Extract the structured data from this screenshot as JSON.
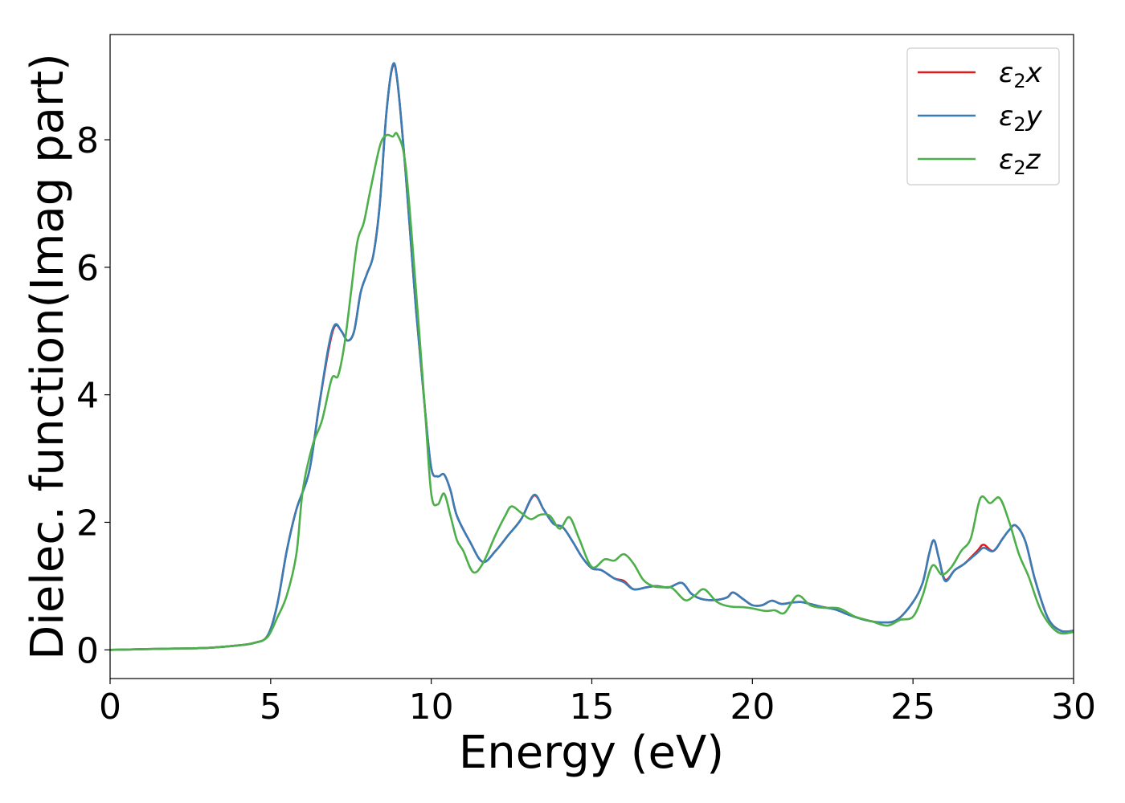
{
  "chart_data": {
    "type": "line",
    "title": "",
    "xlabel": "Energy (eV)",
    "ylabel": "Dielec. function(Imag part)",
    "xlim": [
      0,
      30
    ],
    "ylim": [
      -0.45,
      9.65
    ],
    "xticks": [
      0,
      5,
      10,
      15,
      20,
      25,
      30
    ],
    "xtick_labels": [
      "0",
      "5",
      "10",
      "15",
      "20",
      "25",
      "30"
    ],
    "yticks": [
      0,
      2,
      4,
      6,
      8
    ],
    "ytick_labels": [
      "0",
      "2",
      "4",
      "6",
      "8"
    ],
    "grid": false,
    "legend_position": "top-right",
    "series": [
      {
        "name": "ε2x",
        "legend_main": "ε",
        "legend_sub": "2",
        "legend_tail": "x",
        "color": "#e41a1c",
        "points": [
          [
            0,
            0
          ],
          [
            1,
            0.01
          ],
          [
            2,
            0.02
          ],
          [
            3,
            0.03
          ],
          [
            4,
            0.07
          ],
          [
            4.5,
            0.11
          ],
          [
            4.9,
            0.22
          ],
          [
            5.2,
            0.7
          ],
          [
            5.5,
            1.55
          ],
          [
            5.8,
            2.2
          ],
          [
            6.2,
            2.8
          ],
          [
            6.5,
            3.8
          ],
          [
            6.8,
            4.7
          ],
          [
            7.0,
            5.08
          ],
          [
            7.2,
            5.0
          ],
          [
            7.4,
            4.85
          ],
          [
            7.6,
            5.0
          ],
          [
            7.8,
            5.6
          ],
          [
            8.0,
            5.9
          ],
          [
            8.2,
            6.2
          ],
          [
            8.4,
            7.0
          ],
          [
            8.6,
            8.4
          ],
          [
            8.8,
            9.15
          ],
          [
            8.95,
            8.9
          ],
          [
            9.2,
            7.5
          ],
          [
            9.5,
            5.5
          ],
          [
            9.8,
            3.8
          ],
          [
            10.0,
            2.85
          ],
          [
            10.2,
            2.72
          ],
          [
            10.4,
            2.75
          ],
          [
            10.6,
            2.5
          ],
          [
            10.8,
            2.1
          ],
          [
            11.2,
            1.7
          ],
          [
            11.6,
            1.38
          ],
          [
            12.0,
            1.55
          ],
          [
            12.4,
            1.8
          ],
          [
            12.8,
            2.05
          ],
          [
            13.2,
            2.42
          ],
          [
            13.5,
            2.2
          ],
          [
            13.8,
            1.98
          ],
          [
            14.1,
            1.92
          ],
          [
            14.4,
            1.7
          ],
          [
            14.7,
            1.45
          ],
          [
            15.0,
            1.28
          ],
          [
            15.3,
            1.25
          ],
          [
            15.7,
            1.12
          ],
          [
            16.0,
            1.08
          ],
          [
            16.3,
            0.95
          ],
          [
            16.7,
            0.98
          ],
          [
            17.0,
            1.0
          ],
          [
            17.4,
            0.98
          ],
          [
            17.8,
            1.05
          ],
          [
            18.1,
            0.88
          ],
          [
            18.4,
            0.8
          ],
          [
            18.8,
            0.78
          ],
          [
            19.2,
            0.82
          ],
          [
            19.4,
            0.9
          ],
          [
            19.7,
            0.8
          ],
          [
            20.0,
            0.7
          ],
          [
            20.3,
            0.7
          ],
          [
            20.6,
            0.77
          ],
          [
            20.9,
            0.72
          ],
          [
            21.2,
            0.74
          ],
          [
            21.5,
            0.75
          ],
          [
            21.8,
            0.72
          ],
          [
            22.2,
            0.67
          ],
          [
            22.6,
            0.63
          ],
          [
            23.0,
            0.55
          ],
          [
            23.5,
            0.47
          ],
          [
            24.0,
            0.43
          ],
          [
            24.5,
            0.47
          ],
          [
            25.0,
            0.75
          ],
          [
            25.3,
            1.05
          ],
          [
            25.5,
            1.5
          ],
          [
            25.65,
            1.72
          ],
          [
            25.8,
            1.45
          ],
          [
            26.0,
            1.1
          ],
          [
            26.3,
            1.25
          ],
          [
            26.6,
            1.35
          ],
          [
            27.0,
            1.55
          ],
          [
            27.2,
            1.65
          ],
          [
            27.5,
            1.55
          ],
          [
            27.8,
            1.75
          ],
          [
            28.0,
            1.88
          ],
          [
            28.2,
            1.95
          ],
          [
            28.5,
            1.7
          ],
          [
            28.8,
            1.1
          ],
          [
            29.2,
            0.5
          ],
          [
            29.6,
            0.3
          ],
          [
            30,
            0.3
          ]
        ]
      },
      {
        "name": "ε2y",
        "legend_main": "ε",
        "legend_sub": "2",
        "legend_tail": "y",
        "color": "#377eb8",
        "points": [
          [
            0,
            0
          ],
          [
            1,
            0.01
          ],
          [
            2,
            0.02
          ],
          [
            3,
            0.03
          ],
          [
            4,
            0.07
          ],
          [
            4.5,
            0.11
          ],
          [
            4.9,
            0.22
          ],
          [
            5.2,
            0.7
          ],
          [
            5.5,
            1.55
          ],
          [
            5.8,
            2.2
          ],
          [
            6.2,
            2.8
          ],
          [
            6.5,
            3.8
          ],
          [
            6.8,
            4.75
          ],
          [
            7.0,
            5.1
          ],
          [
            7.2,
            5.0
          ],
          [
            7.4,
            4.85
          ],
          [
            7.6,
            5.0
          ],
          [
            7.8,
            5.6
          ],
          [
            8.0,
            5.9
          ],
          [
            8.2,
            6.2
          ],
          [
            8.4,
            7.0
          ],
          [
            8.6,
            8.4
          ],
          [
            8.8,
            9.17
          ],
          [
            8.95,
            8.9
          ],
          [
            9.2,
            7.5
          ],
          [
            9.5,
            5.5
          ],
          [
            9.8,
            3.8
          ],
          [
            10.0,
            2.85
          ],
          [
            10.2,
            2.72
          ],
          [
            10.4,
            2.75
          ],
          [
            10.6,
            2.5
          ],
          [
            10.8,
            2.1
          ],
          [
            11.2,
            1.7
          ],
          [
            11.6,
            1.38
          ],
          [
            12.0,
            1.55
          ],
          [
            12.4,
            1.8
          ],
          [
            12.8,
            2.05
          ],
          [
            13.2,
            2.43
          ],
          [
            13.5,
            2.2
          ],
          [
            13.8,
            1.98
          ],
          [
            14.1,
            1.92
          ],
          [
            14.4,
            1.7
          ],
          [
            14.7,
            1.45
          ],
          [
            15.0,
            1.28
          ],
          [
            15.3,
            1.25
          ],
          [
            15.7,
            1.12
          ],
          [
            16.0,
            1.06
          ],
          [
            16.3,
            0.95
          ],
          [
            16.7,
            0.98
          ],
          [
            17.0,
            1.0
          ],
          [
            17.4,
            0.98
          ],
          [
            17.8,
            1.05
          ],
          [
            18.1,
            0.88
          ],
          [
            18.4,
            0.8
          ],
          [
            18.8,
            0.78
          ],
          [
            19.2,
            0.82
          ],
          [
            19.4,
            0.9
          ],
          [
            19.7,
            0.8
          ],
          [
            20.0,
            0.7
          ],
          [
            20.3,
            0.7
          ],
          [
            20.6,
            0.77
          ],
          [
            20.9,
            0.72
          ],
          [
            21.2,
            0.74
          ],
          [
            21.5,
            0.75
          ],
          [
            21.8,
            0.72
          ],
          [
            22.2,
            0.67
          ],
          [
            22.6,
            0.63
          ],
          [
            23.0,
            0.55
          ],
          [
            23.5,
            0.47
          ],
          [
            24.0,
            0.43
          ],
          [
            24.5,
            0.47
          ],
          [
            25.0,
            0.75
          ],
          [
            25.3,
            1.05
          ],
          [
            25.5,
            1.5
          ],
          [
            25.65,
            1.72
          ],
          [
            25.8,
            1.45
          ],
          [
            26.0,
            1.08
          ],
          [
            26.3,
            1.25
          ],
          [
            26.6,
            1.35
          ],
          [
            27.0,
            1.52
          ],
          [
            27.2,
            1.6
          ],
          [
            27.5,
            1.55
          ],
          [
            27.8,
            1.75
          ],
          [
            28.0,
            1.88
          ],
          [
            28.2,
            1.95
          ],
          [
            28.5,
            1.7
          ],
          [
            28.8,
            1.1
          ],
          [
            29.2,
            0.5
          ],
          [
            29.6,
            0.3
          ],
          [
            30,
            0.3
          ]
        ]
      },
      {
        "name": "ε2z",
        "legend_main": "ε",
        "legend_sub": "2",
        "legend_tail": "z",
        "color": "#4daf4a",
        "points": [
          [
            0,
            0
          ],
          [
            1,
            0.01
          ],
          [
            2,
            0.02
          ],
          [
            3,
            0.03
          ],
          [
            4,
            0.07
          ],
          [
            4.5,
            0.11
          ],
          [
            4.9,
            0.2
          ],
          [
            5.2,
            0.5
          ],
          [
            5.5,
            0.85
          ],
          [
            5.8,
            1.5
          ],
          [
            6.0,
            2.5
          ],
          [
            6.3,
            3.2
          ],
          [
            6.6,
            3.6
          ],
          [
            6.9,
            4.25
          ],
          [
            7.1,
            4.3
          ],
          [
            7.3,
            4.8
          ],
          [
            7.5,
            5.6
          ],
          [
            7.7,
            6.4
          ],
          [
            7.9,
            6.7
          ],
          [
            8.1,
            7.2
          ],
          [
            8.4,
            7.9
          ],
          [
            8.6,
            8.07
          ],
          [
            8.8,
            8.05
          ],
          [
            8.95,
            8.08
          ],
          [
            9.2,
            7.6
          ],
          [
            9.5,
            5.8
          ],
          [
            9.8,
            3.8
          ],
          [
            10.0,
            2.45
          ],
          [
            10.2,
            2.28
          ],
          [
            10.4,
            2.45
          ],
          [
            10.6,
            2.1
          ],
          [
            10.8,
            1.72
          ],
          [
            11.0,
            1.55
          ],
          [
            11.3,
            1.22
          ],
          [
            11.6,
            1.35
          ],
          [
            12.0,
            1.8
          ],
          [
            12.3,
            2.1
          ],
          [
            12.5,
            2.25
          ],
          [
            12.8,
            2.15
          ],
          [
            13.1,
            2.05
          ],
          [
            13.4,
            2.12
          ],
          [
            13.7,
            2.1
          ],
          [
            14.0,
            1.9
          ],
          [
            14.3,
            2.08
          ],
          [
            14.6,
            1.75
          ],
          [
            15.0,
            1.3
          ],
          [
            15.4,
            1.42
          ],
          [
            15.7,
            1.4
          ],
          [
            16.0,
            1.5
          ],
          [
            16.3,
            1.35
          ],
          [
            16.6,
            1.1
          ],
          [
            16.9,
            1.0
          ],
          [
            17.2,
            0.98
          ],
          [
            17.5,
            0.97
          ],
          [
            17.9,
            0.78
          ],
          [
            18.2,
            0.85
          ],
          [
            18.5,
            0.95
          ],
          [
            18.9,
            0.75
          ],
          [
            19.3,
            0.68
          ],
          [
            19.7,
            0.67
          ],
          [
            20.0,
            0.65
          ],
          [
            20.4,
            0.61
          ],
          [
            20.7,
            0.62
          ],
          [
            21.0,
            0.58
          ],
          [
            21.4,
            0.85
          ],
          [
            21.8,
            0.7
          ],
          [
            22.2,
            0.66
          ],
          [
            22.7,
            0.65
          ],
          [
            23.2,
            0.52
          ],
          [
            23.7,
            0.45
          ],
          [
            24.2,
            0.38
          ],
          [
            24.6,
            0.47
          ],
          [
            25.0,
            0.52
          ],
          [
            25.3,
            0.85
          ],
          [
            25.6,
            1.32
          ],
          [
            25.9,
            1.18
          ],
          [
            26.2,
            1.3
          ],
          [
            26.5,
            1.55
          ],
          [
            26.8,
            1.75
          ],
          [
            27.1,
            2.38
          ],
          [
            27.4,
            2.3
          ],
          [
            27.7,
            2.38
          ],
          [
            28.0,
            2.0
          ],
          [
            28.3,
            1.5
          ],
          [
            28.6,
            1.15
          ],
          [
            29.0,
            0.6
          ],
          [
            29.5,
            0.28
          ],
          [
            30,
            0.28
          ]
        ]
      }
    ]
  }
}
